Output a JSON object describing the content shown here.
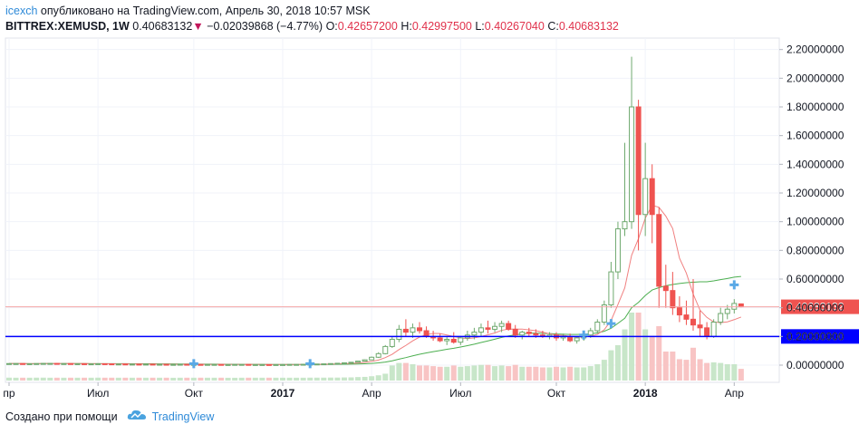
{
  "header": {
    "user": "icexch",
    "published_text": "опубликовано на TradingView.com, Апрель 30, 2018 10:57 MSK",
    "symbol": "BITTREX:XEMUSD, 1W",
    "last": "0.40683132",
    "change_arrow": "▼",
    "change": "−0.02039868 (−4.77%)",
    "ohlc": {
      "o_label": "O:",
      "o": "0.42657200",
      "h_label": "H:",
      "h": "0.42997500",
      "l_label": "L:",
      "l": "0.40267040",
      "c_label": "C:",
      "c": "0.40683132"
    }
  },
  "footer": {
    "created_with": "Создано при помощи",
    "brand": "TradingView",
    "logo_icon": "tradingview-cloud-icon"
  },
  "colors": {
    "up": "#26a69a",
    "down": "#ef5350",
    "ma_fast": "#f08080",
    "ma_slow": "#4caf50",
    "volume_up": "#c8e6c9",
    "volume_down": "#f8c4c4",
    "hline": "#0000ff",
    "price_tag": "#ef5350",
    "hline_tag": "#0000ff",
    "accent": "#2e8ad8"
  },
  "chart_data": {
    "type": "candlestick",
    "interval": "1W",
    "y_axis": {
      "range": [
        -0.12,
        2.28
      ],
      "ticks": [
        "2.20000000",
        "2.00000000",
        "1.80000000",
        "1.60000000",
        "1.40000000",
        "1.20000000",
        "1.00000000",
        "0.80000000",
        "0.60000000",
        "0.40000000",
        "0.20000000",
        "0.00000000"
      ],
      "tick_values": [
        2.2,
        2.0,
        1.8,
        1.6,
        1.4,
        1.2,
        1.0,
        0.8,
        0.6,
        0.4,
        0.2,
        0.0
      ]
    },
    "x_axis": {
      "labels": [
        "пр",
        "Июл",
        "Окт",
        "2017",
        "Апр",
        "Июл",
        "Окт",
        "2018",
        "Апр"
      ],
      "label_weeks": [
        0,
        13,
        27,
        40,
        53,
        66,
        80,
        93,
        106
      ]
    },
    "last_price_label": "0.40683132",
    "last_price": 0.40683132,
    "horizontal_line": {
      "value": 0.2,
      "label": "0.20000000"
    },
    "candles": [
      [
        0.01,
        0.012,
        0.009,
        0.011
      ],
      [
        0.011,
        0.012,
        0.01,
        0.011
      ],
      [
        0.011,
        0.012,
        0.01,
        0.01
      ],
      [
        0.01,
        0.011,
        0.009,
        0.01
      ],
      [
        0.01,
        0.012,
        0.009,
        0.011
      ],
      [
        0.011,
        0.013,
        0.01,
        0.012
      ],
      [
        0.012,
        0.013,
        0.011,
        0.012
      ],
      [
        0.012,
        0.013,
        0.011,
        0.011
      ],
      [
        0.011,
        0.012,
        0.01,
        0.011
      ],
      [
        0.011,
        0.012,
        0.01,
        0.01
      ],
      [
        0.01,
        0.011,
        0.009,
        0.01
      ],
      [
        0.01,
        0.011,
        0.009,
        0.009
      ],
      [
        0.009,
        0.01,
        0.008,
        0.009
      ],
      [
        0.009,
        0.011,
        0.008,
        0.01
      ],
      [
        0.01,
        0.011,
        0.009,
        0.009
      ],
      [
        0.009,
        0.01,
        0.008,
        0.008
      ],
      [
        0.008,
        0.009,
        0.007,
        0.008
      ],
      [
        0.008,
        0.009,
        0.007,
        0.007
      ],
      [
        0.007,
        0.008,
        0.006,
        0.007
      ],
      [
        0.007,
        0.008,
        0.006,
        0.006
      ],
      [
        0.006,
        0.008,
        0.006,
        0.007
      ],
      [
        0.007,
        0.008,
        0.006,
        0.006
      ],
      [
        0.006,
        0.007,
        0.005,
        0.006
      ],
      [
        0.006,
        0.007,
        0.005,
        0.005
      ],
      [
        0.005,
        0.006,
        0.005,
        0.005
      ],
      [
        0.005,
        0.007,
        0.005,
        0.006
      ],
      [
        0.006,
        0.007,
        0.005,
        0.005
      ],
      [
        0.005,
        0.006,
        0.004,
        0.005
      ],
      [
        0.005,
        0.006,
        0.004,
        0.004
      ],
      [
        0.004,
        0.006,
        0.004,
        0.005
      ],
      [
        0.005,
        0.006,
        0.004,
        0.005
      ],
      [
        0.005,
        0.006,
        0.004,
        0.004
      ],
      [
        0.004,
        0.005,
        0.004,
        0.004
      ],
      [
        0.004,
        0.005,
        0.004,
        0.005
      ],
      [
        0.005,
        0.006,
        0.004,
        0.005
      ],
      [
        0.005,
        0.006,
        0.004,
        0.004
      ],
      [
        0.004,
        0.005,
        0.003,
        0.004
      ],
      [
        0.004,
        0.005,
        0.003,
        0.004
      ],
      [
        0.004,
        0.005,
        0.003,
        0.003
      ],
      [
        0.003,
        0.005,
        0.003,
        0.004
      ],
      [
        0.004,
        0.005,
        0.003,
        0.004
      ],
      [
        0.004,
        0.005,
        0.003,
        0.005
      ],
      [
        0.005,
        0.006,
        0.004,
        0.005
      ],
      [
        0.005,
        0.006,
        0.004,
        0.006
      ],
      [
        0.006,
        0.008,
        0.005,
        0.007
      ],
      [
        0.007,
        0.009,
        0.006,
        0.008
      ],
      [
        0.008,
        0.01,
        0.007,
        0.009
      ],
      [
        0.009,
        0.012,
        0.008,
        0.011
      ],
      [
        0.011,
        0.014,
        0.01,
        0.013
      ],
      [
        0.013,
        0.018,
        0.012,
        0.016
      ],
      [
        0.016,
        0.022,
        0.015,
        0.02
      ],
      [
        0.02,
        0.03,
        0.018,
        0.028
      ],
      [
        0.028,
        0.04,
        0.025,
        0.037
      ],
      [
        0.037,
        0.06,
        0.035,
        0.055
      ],
      [
        0.055,
        0.09,
        0.05,
        0.08
      ],
      [
        0.08,
        0.14,
        0.075,
        0.13
      ],
      [
        0.13,
        0.2,
        0.12,
        0.18
      ],
      [
        0.18,
        0.28,
        0.16,
        0.25
      ],
      [
        0.25,
        0.32,
        0.2,
        0.23
      ],
      [
        0.23,
        0.29,
        0.19,
        0.26
      ],
      [
        0.26,
        0.3,
        0.22,
        0.24
      ],
      [
        0.24,
        0.27,
        0.19,
        0.2
      ],
      [
        0.2,
        0.24,
        0.17,
        0.19
      ],
      [
        0.19,
        0.22,
        0.16,
        0.17
      ],
      [
        0.17,
        0.2,
        0.14,
        0.18
      ],
      [
        0.18,
        0.23,
        0.15,
        0.16
      ],
      [
        0.16,
        0.2,
        0.14,
        0.19
      ],
      [
        0.19,
        0.24,
        0.17,
        0.21
      ],
      [
        0.21,
        0.26,
        0.18,
        0.23
      ],
      [
        0.23,
        0.29,
        0.2,
        0.26
      ],
      [
        0.26,
        0.31,
        0.22,
        0.25
      ],
      [
        0.25,
        0.3,
        0.23,
        0.27
      ],
      [
        0.27,
        0.31,
        0.23,
        0.29
      ],
      [
        0.29,
        0.31,
        0.24,
        0.25
      ],
      [
        0.25,
        0.28,
        0.19,
        0.21
      ],
      [
        0.21,
        0.24,
        0.18,
        0.23
      ],
      [
        0.23,
        0.26,
        0.2,
        0.22
      ],
      [
        0.22,
        0.25,
        0.19,
        0.21
      ],
      [
        0.21,
        0.24,
        0.19,
        0.2
      ],
      [
        0.2,
        0.23,
        0.18,
        0.21
      ],
      [
        0.21,
        0.23,
        0.17,
        0.19
      ],
      [
        0.19,
        0.22,
        0.17,
        0.2
      ],
      [
        0.2,
        0.22,
        0.16,
        0.17
      ],
      [
        0.17,
        0.2,
        0.15,
        0.19
      ],
      [
        0.19,
        0.22,
        0.17,
        0.21
      ],
      [
        0.21,
        0.26,
        0.19,
        0.24
      ],
      [
        0.24,
        0.32,
        0.22,
        0.3
      ],
      [
        0.3,
        0.45,
        0.28,
        0.42
      ],
      [
        0.42,
        0.72,
        0.4,
        0.65
      ],
      [
        0.65,
        1.0,
        0.6,
        0.95
      ],
      [
        0.95,
        1.55,
        0.9,
        1.0
      ],
      [
        1.0,
        2.15,
        0.95,
        1.8
      ],
      [
        1.8,
        1.85,
        0.8,
        1.05
      ],
      [
        1.05,
        1.55,
        0.9,
        1.3
      ],
      [
        1.3,
        1.4,
        0.85,
        1.05
      ],
      [
        1.05,
        1.1,
        0.4,
        0.55
      ],
      [
        0.55,
        0.7,
        0.4,
        0.52
      ],
      [
        0.52,
        0.65,
        0.35,
        0.4
      ],
      [
        0.4,
        0.48,
        0.3,
        0.35
      ],
      [
        0.35,
        0.45,
        0.28,
        0.32
      ],
      [
        0.32,
        0.6,
        0.24,
        0.28
      ],
      [
        0.28,
        0.38,
        0.2,
        0.26
      ],
      [
        0.26,
        0.3,
        0.18,
        0.2
      ],
      [
        0.2,
        0.32,
        0.19,
        0.3
      ],
      [
        0.3,
        0.4,
        0.28,
        0.36
      ],
      [
        0.36,
        0.42,
        0.32,
        0.39
      ],
      [
        0.39,
        0.46,
        0.36,
        0.43
      ],
      [
        0.427,
        0.43,
        0.403,
        0.407
      ]
    ]
  }
}
